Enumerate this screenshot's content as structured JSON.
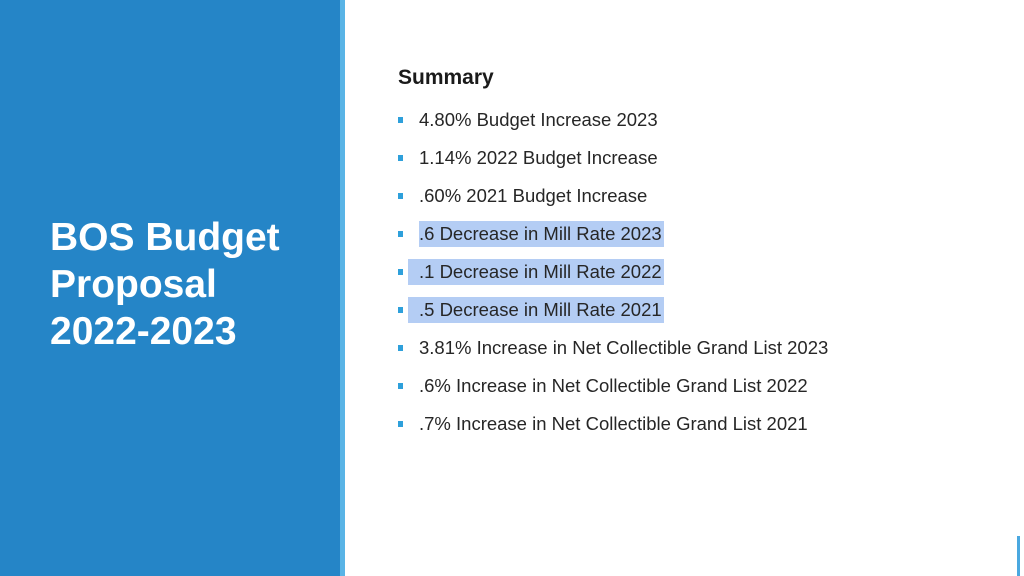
{
  "slide": {
    "title_lines": [
      "BOS Budget",
      "Proposal",
      "2022-2023"
    ],
    "summary_heading": "Summary",
    "bullets": [
      {
        "text": "4.80% Budget Increase 2023",
        "highlighted": false
      },
      {
        "text": "1.14% 2022 Budget Increase",
        "highlighted": false
      },
      {
        "text": ".60% 2021 Budget Increase",
        "highlighted": false
      },
      {
        "text": ".6 Decrease in Mill Rate 2023",
        "highlighted": true
      },
      {
        "text": ".1 Decrease in Mill Rate 2022",
        "highlighted": true
      },
      {
        "text": ".5 Decrease in Mill Rate 2021",
        "highlighted": true
      },
      {
        "text": "3.81% Increase in Net Collectible Grand List 2023",
        "highlighted": false
      },
      {
        "text": ".6% Increase in Net Collectible Grand List 2022",
        "highlighted": false
      },
      {
        "text": ".7% Increase in Net Collectible Grand List 2021",
        "highlighted": false
      }
    ]
  },
  "colors": {
    "panel": "#2585c7",
    "panel_edge": "#59b4e6",
    "bullet": "#2ea0db",
    "highlight": "#b4cdf4"
  }
}
